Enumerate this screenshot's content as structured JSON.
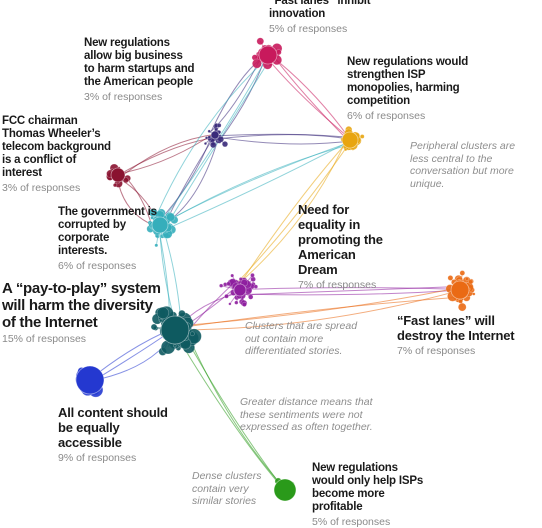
{
  "colors": {
    "magenta": "#c8195c",
    "navy": "#3a2a7a",
    "maroon": "#8a1230",
    "teal_light": "#35aebb",
    "teal_dark": "#0e5a60",
    "purple": "#8e1e9e",
    "gold": "#e8a510",
    "orange": "#ea6a14",
    "blue": "#2438d0",
    "green": "#2a9a1a"
  },
  "clusters": [
    {
      "id": "fast_lanes_innovation",
      "title": "“Fast lanes” inhibit innovation",
      "pct": "5% of responses",
      "color": "magenta"
    },
    {
      "id": "regulations_harm_startups",
      "title": "New regulations allow big business to harm startups and the American people",
      "pct": "3% of responses",
      "color": "navy"
    },
    {
      "id": "strengthen_monopolies",
      "title": "New regulations would strengthen ISP monopolies, harming competition",
      "pct": "6% of responses",
      "color": "gold"
    },
    {
      "id": "fcc_chairman",
      "title": "FCC chairman Thomas Wheeler’s telecom background is a conflict of interest",
      "pct": "3% of responses",
      "color": "maroon"
    },
    {
      "id": "government_corrupted",
      "title": "The government is corrupted by corporate interests.",
      "pct": "6% of responses",
      "color": "teal_light"
    },
    {
      "id": "need_equality",
      "title": "Need for equality in promoting the American Dream",
      "pct": "7% of responses",
      "color": "purple"
    },
    {
      "id": "pay_to_play",
      "title": "A “pay-to-play” system will harm the diversity of the Internet",
      "pct": "15% of responses",
      "color": "teal_dark"
    },
    {
      "id": "destroy_internet",
      "title": "“Fast lanes” will destroy the Internet",
      "pct": "7% of responses",
      "color": "orange"
    },
    {
      "id": "equally_accessible",
      "title": "All content should be equally accessible",
      "pct": "9% of responses",
      "color": "blue"
    },
    {
      "id": "isps_profitable",
      "title": "New regulations would only help ISPs become more profitable",
      "pct": "5% of responses",
      "color": "green"
    }
  ],
  "annotations": {
    "peripheral": "Peripheral clusters are less central to the conversation but more unique.",
    "spread": "Clusters that are spread out contain more differentiated stories.",
    "distance": "Greater distance means that these sentiments were not expressed as often together.",
    "dense": "Dense clusters contain very similar stories"
  }
}
